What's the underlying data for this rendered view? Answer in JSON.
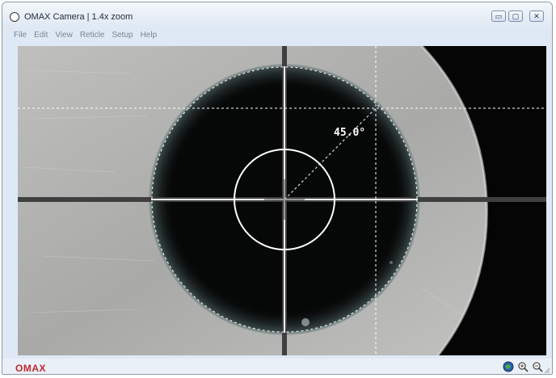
{
  "window": {
    "title": "OMAX Camera | 1.4x zoom"
  },
  "title_buttons": {
    "minimize": "▭",
    "maximize": "▢",
    "close": "✕"
  },
  "menu": [
    "File",
    "Edit",
    "View",
    "Reticle",
    "Setup",
    "Help"
  ],
  "reticle": {
    "angle_label": "45.0°"
  },
  "status": {
    "logo": "OMAX"
  },
  "icons": [
    "globe-icon",
    "zoom-in-icon",
    "zoom-out-icon"
  ],
  "colors": {
    "logo": "#c0282d",
    "reticle": "#ffffff",
    "titlebar": "#dfe9f5"
  }
}
